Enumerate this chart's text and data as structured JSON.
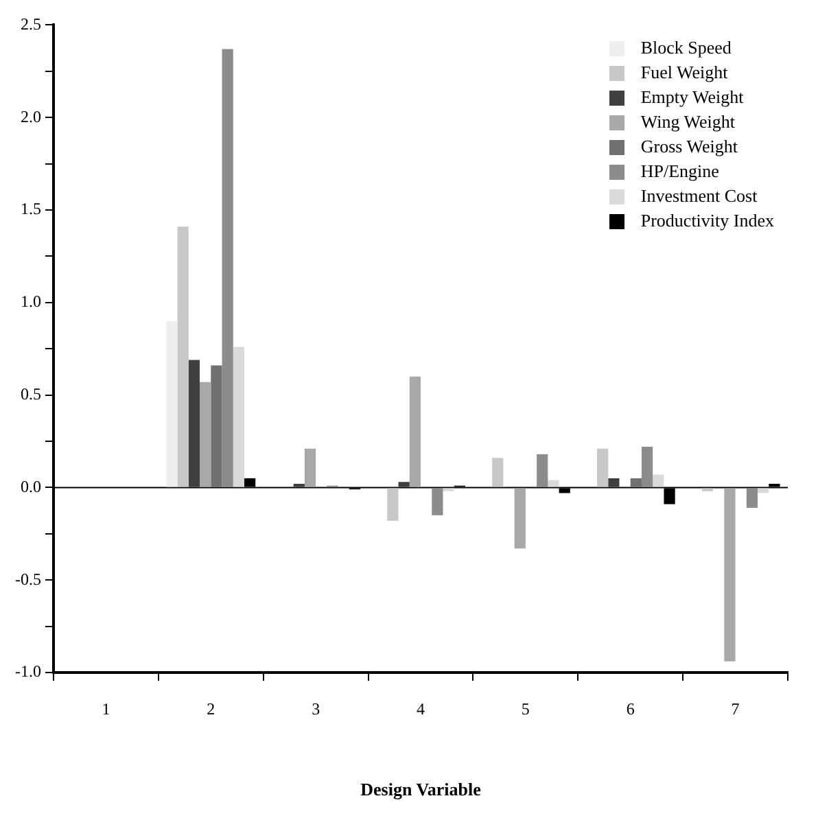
{
  "chart_data": {
    "type": "bar",
    "xlabel": "Design Variable",
    "categories": [
      "1",
      "2",
      "3",
      "4",
      "5",
      "6",
      "7"
    ],
    "ylim": [
      -1.0,
      2.5
    ],
    "yticks": [
      {
        "value": -1.0,
        "label": "-1.0"
      },
      {
        "value": -0.75,
        "label": null
      },
      -0.5,
      {
        "value": -0.25,
        "label": null
      },
      {
        "value": 0,
        "label": "0.0"
      },
      {
        "value": 0.25,
        "label": null
      },
      0.5,
      {
        "value": 0.75,
        "label": null
      },
      {
        "value": 1,
        "label": "1.0"
      },
      {
        "value": 1.25,
        "label": null
      },
      1.5,
      {
        "value": 1.75,
        "label": null
      },
      {
        "value": 2,
        "label": "2.0"
      },
      {
        "value": 2.25,
        "label": null
      },
      2.5
    ],
    "legend": "top right",
    "series": [
      {
        "name": "Block Speed",
        "color": "#eeeeee",
        "values": [
          0,
          0.9,
          0,
          0,
          0,
          0,
          0
        ]
      },
      {
        "name": "Fuel Weight",
        "color": "#c8c8c8",
        "values": [
          0,
          1.41,
          0,
          -0.18,
          0.16,
          0.21,
          -0.02
        ]
      },
      {
        "name": "Empty Weight",
        "color": "#404040",
        "values": [
          0,
          0.69,
          0.02,
          0.03,
          0,
          0.05,
          0
        ]
      },
      {
        "name": "Wing Weight",
        "color": "#a8a8a8",
        "values": [
          0,
          0.57,
          0.21,
          0.6,
          -0.33,
          0,
          -0.94
        ]
      },
      {
        "name": "Gross Weight",
        "color": "#707070",
        "values": [
          0,
          0.66,
          0,
          0,
          0,
          0.05,
          0
        ]
      },
      {
        "name": "HP/Engine",
        "color": "#8c8c8c",
        "values": [
          0,
          2.37,
          0.01,
          -0.15,
          0.18,
          0.22,
          -0.11
        ]
      },
      {
        "name": "Investment Cost",
        "color": "#dadada",
        "values": [
          0,
          0.76,
          0,
          -0.02,
          0.04,
          0.07,
          -0.03
        ]
      },
      {
        "name": "Productivity Index",
        "color": "#000000",
        "values": [
          0,
          0.05,
          -0.01,
          0.01,
          -0.03,
          -0.09,
          0.02
        ]
      }
    ]
  }
}
